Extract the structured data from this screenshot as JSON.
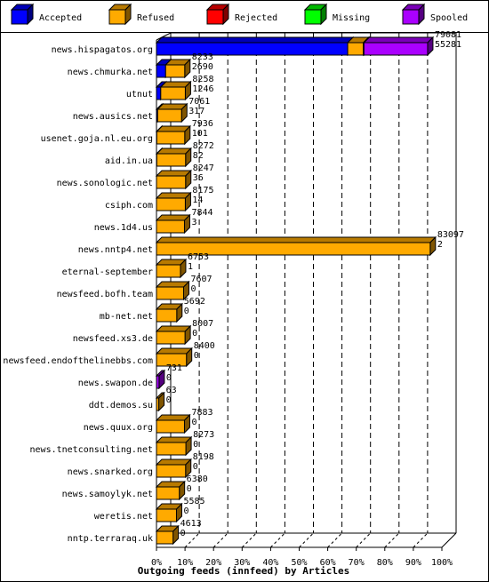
{
  "chart_data": {
    "type": "bar",
    "orientation": "horizontal",
    "stacked": true,
    "title": "",
    "xlabel": "Outgoing feeds (innfeed) by Articles",
    "ylabel": "",
    "xlim": [
      0,
      100
    ],
    "x_ticks": [
      "0%",
      "10%",
      "20%",
      "30%",
      "40%",
      "50%",
      "60%",
      "70%",
      "80%",
      "90%",
      "100%"
    ],
    "grid": true,
    "legend_position": "top",
    "legend": [
      {
        "name": "Accepted",
        "color": "#0000ff"
      },
      {
        "name": "Refused",
        "color": "#ffaa00"
      },
      {
        "name": "Rejected",
        "color": "#ff0000"
      },
      {
        "name": "Missing",
        "color": "#00ff00"
      },
      {
        "name": "Spooled",
        "color": "#aa00ff"
      }
    ],
    "categories": [
      "news.hispagatos.org",
      "news.chmurka.net",
      "utnut",
      "news.ausics.net",
      "usenet.goja.nl.eu.org",
      "aid.in.ua",
      "news.sonologic.net",
      "csiph.com",
      "news.1d4.us",
      "news.nntp4.net",
      "eternal-september",
      "newsfeed.bofh.team",
      "mb-net.net",
      "newsfeed.xs3.de",
      "newsfeed.endofthelinebbs.com",
      "news.swapon.de",
      "ddt.demos.su",
      "news.quux.org",
      "news.tnetconsulting.net",
      "news.snarked.org",
      "news.samoylyk.net",
      "weretis.net",
      "nntp.terraraq.uk"
    ],
    "offered": [
      "79081",
      "8233",
      "8258",
      "7061",
      "7936",
      "8272",
      "8247",
      "8175",
      "7844",
      "83097",
      "6753",
      "7607",
      "5692",
      "8007",
      "8400",
      "731",
      "63",
      "7883",
      "8273",
      "8198",
      "6380",
      "5585",
      "4613"
    ],
    "accepted_counts": [
      "55281",
      "2690",
      "1246",
      "317",
      "101",
      "82",
      "36",
      "14",
      "3",
      "2",
      "1",
      "0",
      "0",
      "0",
      "0",
      "0",
      "0",
      "0",
      "0",
      "0",
      "0",
      "0",
      "0"
    ],
    "series": [
      {
        "name": "Accepted",
        "values": [
          67.0,
          3.2,
          1.5,
          0.4,
          0.1,
          0.1,
          0.0,
          0.0,
          0.0,
          0.0,
          0.0,
          0.0,
          0.0,
          0.0,
          0.0,
          0.0,
          0.0,
          0.0,
          0.0,
          0.0,
          0.0,
          0.0,
          0.0
        ]
      },
      {
        "name": "Refused",
        "values": [
          5.5,
          6.7,
          8.6,
          8.4,
          9.8,
          10.1,
          10.2,
          10.1,
          9.8,
          95.9,
          8.4,
          9.5,
          7.1,
          10.0,
          10.5,
          0.0,
          0.8,
          9.8,
          10.3,
          10.2,
          8.0,
          7.0,
          5.8
        ]
      },
      {
        "name": "Rejected",
        "values": [
          0.2,
          0.0,
          0.0,
          0.0,
          0.0,
          0.0,
          0.0,
          0.0,
          0.0,
          0.0,
          0.0,
          0.0,
          0.0,
          0.0,
          0.0,
          0.0,
          0.0,
          0.0,
          0.0,
          0.0,
          0.0,
          0.0,
          0.0
        ]
      },
      {
        "name": "Missing",
        "values": [
          0.0,
          0.0,
          0.0,
          0.0,
          0.0,
          0.0,
          0.0,
          0.0,
          0.0,
          0.0,
          0.0,
          0.0,
          0.0,
          0.0,
          0.0,
          0.0,
          0.0,
          0.0,
          0.0,
          0.0,
          0.0,
          0.0,
          0.0
        ]
      },
      {
        "name": "Spooled",
        "values": [
          22.3,
          0.0,
          0.0,
          0.0,
          0.0,
          0.0,
          0.0,
          0.0,
          0.0,
          0.0,
          0.0,
          0.0,
          0.0,
          0.0,
          0.0,
          0.9,
          0.0,
          0.0,
          0.0,
          0.0,
          0.0,
          0.0,
          0.0
        ]
      }
    ]
  }
}
